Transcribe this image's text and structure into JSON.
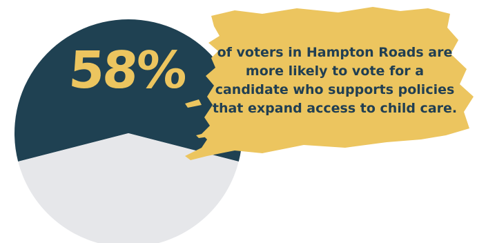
{
  "chart_data": {
    "type": "pie",
    "categories": [
      "",
      ""
    ],
    "values": [
      58,
      42
    ],
    "colors": [
      "#1f4152",
      "#e6e7ea"
    ]
  },
  "headline": {
    "percent_label": "58%",
    "statement": "of voters in Hampton Roads are more likely to vote for a candidate who supports policies that expand access to child care."
  },
  "colors": {
    "accent": "#ecc55f",
    "dark": "#1f4152",
    "light": "#e6e7ea",
    "text": "#213f52",
    "background": "#ffffff"
  }
}
